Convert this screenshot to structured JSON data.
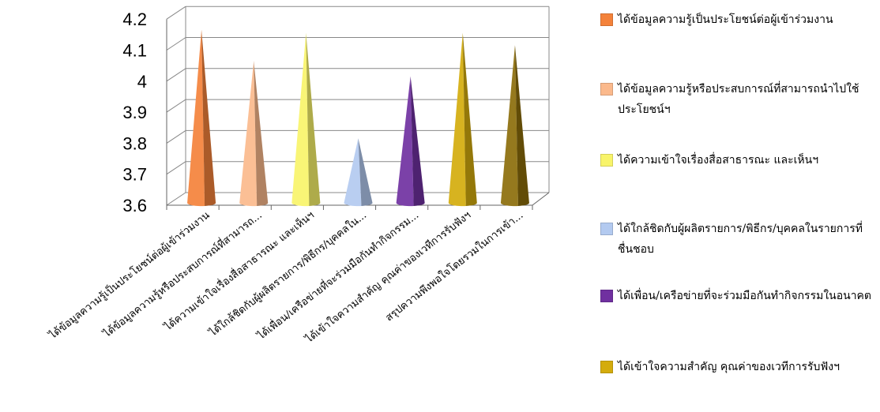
{
  "chart_data": {
    "type": "bar",
    "style": "3d-cone",
    "categories": [
      "ได้ข้อมูลความรู้เป็นประโยชน์ต่อผู้เข้าร่วมงาน",
      "ได้ข้อมูลความรู้หรือประสบการณ์ที่สามารถ...",
      "ได้ความเข้าใจเรื่องสื่อสาธารณะ และเห็นฯ",
      "ได้ใกล้ชิดกับผู้ผลิตรายการ/พิธีกร/บุคคลใน...",
      "ได้เพื่อน/เครือข่ายที่จะร่วมมือกันทำกิจกรรม...",
      "ได้เข้าใจความสำคัญ คุณค่าของเวทีการรับฟังฯ",
      "สรุปความพึงพอใจโดยรวมในการเข้า..."
    ],
    "values": [
      4.12,
      4.02,
      4.11,
      3.77,
      3.97,
      4.11,
      4.07
    ],
    "colors": [
      "#f4823a",
      "#fbb98c",
      "#f8f46a",
      "#b3caf0",
      "#7030a0",
      "#d4ac0d",
      "#8c6d0a"
    ],
    "ylim": [
      3.6,
      4.2
    ],
    "yticks": [
      "3.6",
      "3.7",
      "3.8",
      "3.9",
      "4",
      "4.1",
      "4.2"
    ],
    "grid": true,
    "legend_position": "right",
    "legend": [
      {
        "label": "ได้ข้อมูลความรู้เป็นประโยชน์ต่อผู้เข้าร่วมงาน",
        "color": "#f4823a"
      },
      {
        "label": "ได้ข้อมูลความรู้หรือประสบการณ์ที่สามารถนำไปใช้ประโยชน์ฯ",
        "color": "#fbb98c"
      },
      {
        "label": "ได้ความเข้าใจเรื่องสื่อสาธารณะ และเห็นฯ",
        "color": "#f8f46a"
      },
      {
        "label": "ได้ใกล้ชิดกับผู้ผลิตรายการ/พิธีกร/บุคคลในรายการที่ชื่นชอบ",
        "color": "#b3caf0"
      },
      {
        "label": "ได้เพื่อน/เครือข่ายที่จะร่วมมือกันทำกิจกรรมในอนาคต",
        "color": "#7030a0"
      },
      {
        "label": "ได้เข้าใจความสำคัญ คุณค่าของเวทีการรับฟังฯ",
        "color": "#d4ac0d"
      }
    ]
  }
}
